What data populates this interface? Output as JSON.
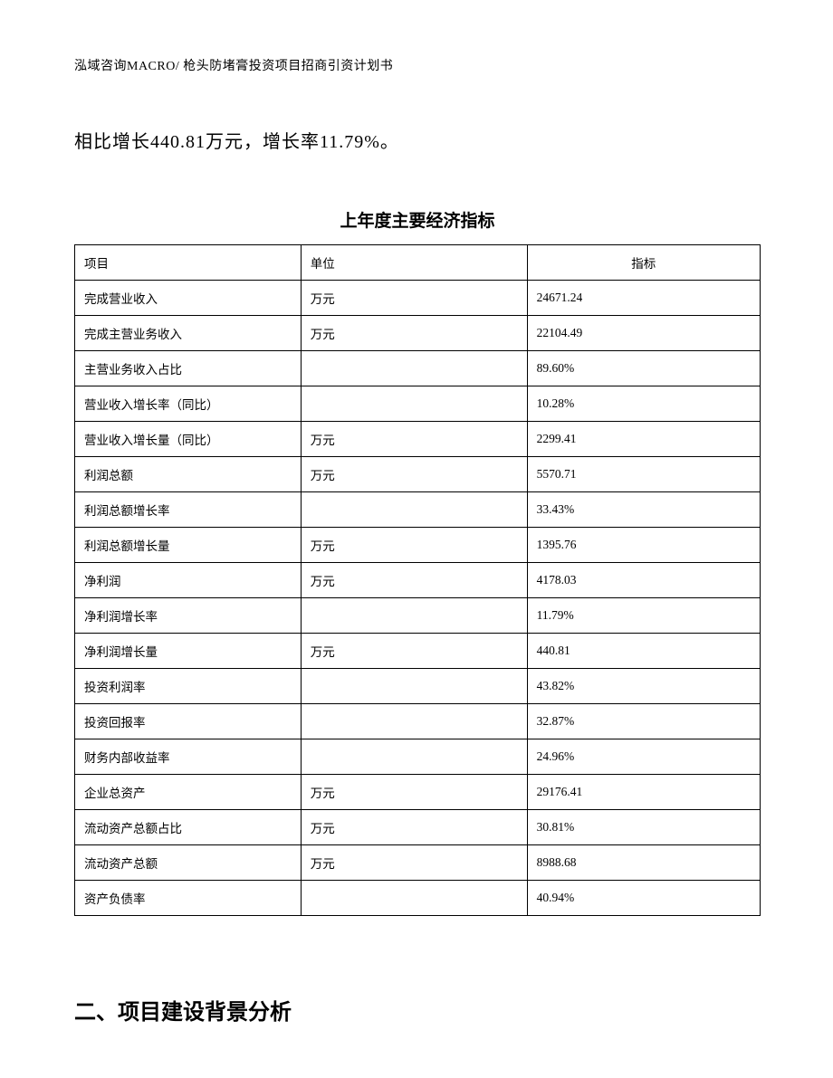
{
  "header": "泓域咨询MACRO/ 枪头防堵膏投资项目招商引资计划书",
  "body_text": "相比增长440.81万元，增长率11.79%。",
  "table": {
    "title": "上年度主要经济指标",
    "columns": [
      "项目",
      "单位",
      "指标"
    ],
    "rows": [
      {
        "item": "完成营业收入",
        "unit": "万元",
        "value": "24671.24"
      },
      {
        "item": "完成主营业务收入",
        "unit": "万元",
        "value": "22104.49"
      },
      {
        "item": "主营业务收入占比",
        "unit": "",
        "value": "89.60%"
      },
      {
        "item": "营业收入增长率（同比）",
        "unit": "",
        "value": "10.28%"
      },
      {
        "item": "营业收入增长量（同比）",
        "unit": "万元",
        "value": "2299.41"
      },
      {
        "item": "利润总额",
        "unit": "万元",
        "value": "5570.71"
      },
      {
        "item": "利润总额增长率",
        "unit": "",
        "value": "33.43%"
      },
      {
        "item": "利润总额增长量",
        "unit": "万元",
        "value": "1395.76"
      },
      {
        "item": "净利润",
        "unit": "万元",
        "value": "4178.03"
      },
      {
        "item": "净利润增长率",
        "unit": "",
        "value": "11.79%"
      },
      {
        "item": "净利润增长量",
        "unit": "万元",
        "value": "440.81"
      },
      {
        "item": "投资利润率",
        "unit": "",
        "value": "43.82%"
      },
      {
        "item": "投资回报率",
        "unit": "",
        "value": "32.87%"
      },
      {
        "item": "财务内部收益率",
        "unit": "",
        "value": "24.96%"
      },
      {
        "item": "企业总资产",
        "unit": "万元",
        "value": "29176.41"
      },
      {
        "item": "流动资产总额占比",
        "unit": "万元",
        "value": "30.81%"
      },
      {
        "item": "流动资产总额",
        "unit": "万元",
        "value": "8988.68"
      },
      {
        "item": "资产负债率",
        "unit": "",
        "value": "40.94%"
      }
    ]
  },
  "section_heading": "二、项目建设背景分析"
}
